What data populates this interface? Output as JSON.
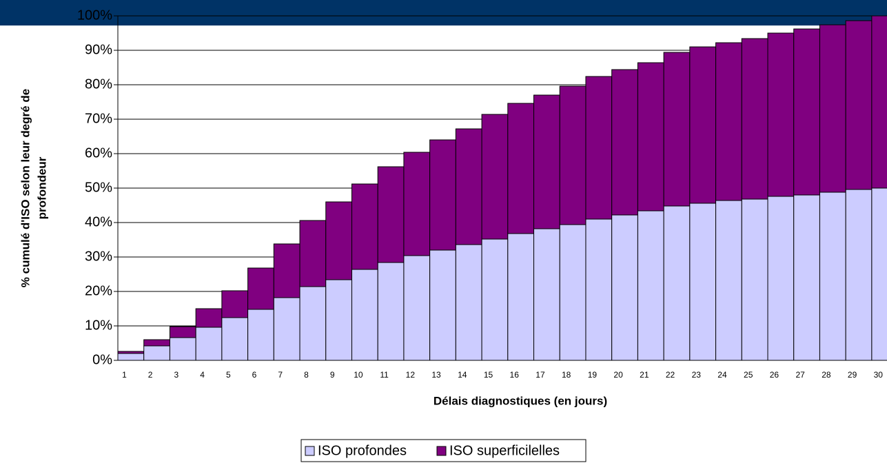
{
  "chart_data": {
    "type": "stacked_bar",
    "xlabel": "Délais diagnostiques (en jours)",
    "ylabel": [
      "% cumulé d'ISO selon leur degré de",
      "profondeur"
    ],
    "categories": [
      "1",
      "2",
      "3",
      "4",
      "5",
      "6",
      "7",
      "8",
      "9",
      "10",
      "11",
      "12",
      "13",
      "14",
      "15",
      "16",
      "17",
      "18",
      "19",
      "20",
      "21",
      "22",
      "23",
      "24",
      "25",
      "26",
      "27",
      "28",
      "29",
      "30"
    ],
    "series": [
      {
        "name": "ISO profondes",
        "color": "#ccccff",
        "values": [
          2.0,
          4.2,
          6.6,
          9.6,
          12.4,
          14.8,
          18.2,
          21.4,
          23.4,
          26.4,
          28.4,
          30.4,
          32.0,
          33.6,
          35.2,
          36.8,
          38.2,
          39.4,
          41.0,
          42.2,
          43.4,
          44.8,
          45.6,
          46.4,
          46.8,
          47.6,
          48.0,
          48.8,
          49.6,
          50.0
        ]
      },
      {
        "name": "ISO superficilelles",
        "color": "#800080",
        "values": [
          0.6,
          1.8,
          3.2,
          5.4,
          7.8,
          12.0,
          15.6,
          19.2,
          22.6,
          24.8,
          27.8,
          30.0,
          32.0,
          33.6,
          36.2,
          37.8,
          38.8,
          40.2,
          41.4,
          42.2,
          43.0,
          44.6,
          45.4,
          45.8,
          46.6,
          47.4,
          48.2,
          48.6,
          49.0,
          50.0
        ]
      }
    ],
    "ylim": [
      0,
      100
    ],
    "yticks": [
      {
        "value": 0,
        "label": "0%"
      },
      {
        "value": 10,
        "label": "10%"
      },
      {
        "value": 20,
        "label": "20%"
      },
      {
        "value": 30,
        "label": "30%"
      },
      {
        "value": 40,
        "label": "40%"
      },
      {
        "value": 50,
        "label": "50%"
      },
      {
        "value": 60,
        "label": "60%"
      },
      {
        "value": 70,
        "label": "70%"
      },
      {
        "value": 80,
        "label": "80%"
      },
      {
        "value": 90,
        "label": "90%"
      },
      {
        "value": 100,
        "label": "100%"
      }
    ],
    "grid": true,
    "legend": "bottom"
  }
}
